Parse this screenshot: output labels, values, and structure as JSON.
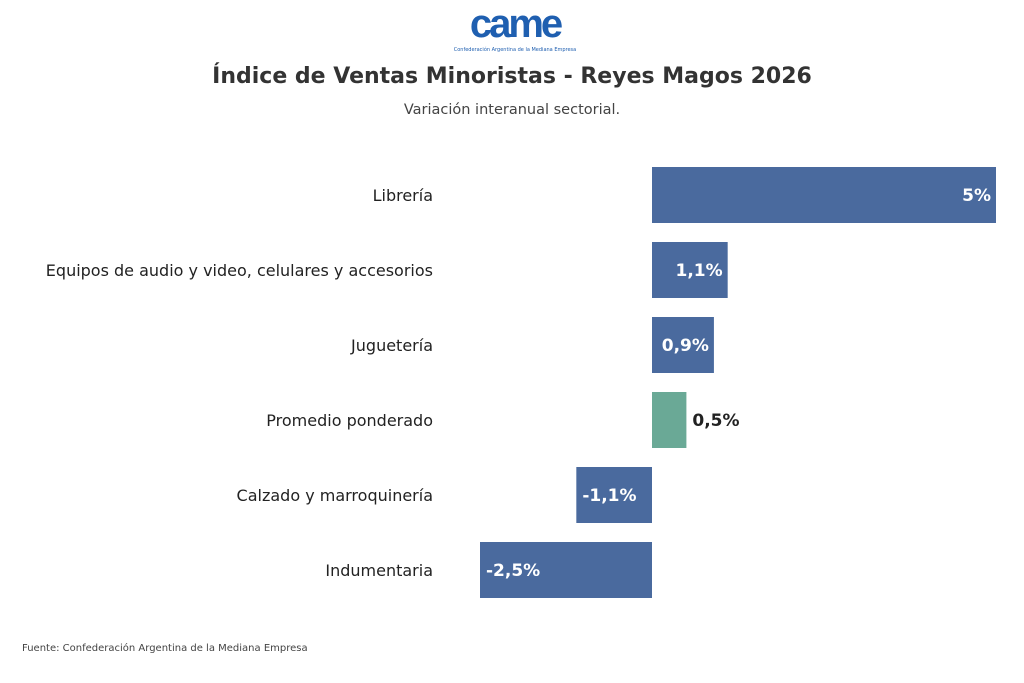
{
  "logo": {
    "text": "came",
    "subtitle": "Confederación Argentina de la Mediana Empresa"
  },
  "source": "Fuente: Confederación Argentina de la Mediana Empresa",
  "chart_data": {
    "type": "bar",
    "orientation": "horizontal",
    "title": "Índice de Ventas Minoristas - Reyes Magos 2026",
    "subtitle": "Variación interanual sectorial.",
    "categories": [
      "Librería",
      "Equipos de audio y video, celulares y accesorios",
      "Juguetería",
      "Promedio ponderado",
      "Calzado y marroquinería",
      "Indumentaria"
    ],
    "values": [
      5,
      1.1,
      0.9,
      0.5,
      -1.1,
      -2.5
    ],
    "data_labels": [
      "5%",
      "1,1%",
      "0,9%",
      "0,5%",
      "-1,1%",
      "-2,5%"
    ],
    "unit": "%",
    "colors": [
      "#4a6a9e",
      "#4a6a9e",
      "#4a6a9e",
      "#6aa996",
      "#4a6a9e",
      "#4a6a9e"
    ],
    "grid": false,
    "legend": "none"
  }
}
